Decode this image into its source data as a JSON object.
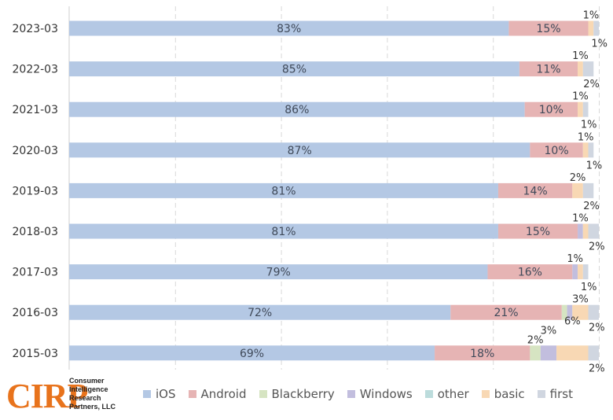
{
  "chart_data": {
    "type": "bar",
    "orientation": "horizontal",
    "stacked": true,
    "normalized": true,
    "categories": [
      "2023-03",
      "2022-03",
      "2021-03",
      "2020-03",
      "2019-03",
      "2018-03",
      "2017-03",
      "2016-03",
      "2015-03"
    ],
    "series": [
      {
        "name": "iOS",
        "color": "#b4c8e4",
        "values": [
          83,
          85,
          86,
          87,
          81,
          81,
          79,
          72,
          69
        ],
        "labels": [
          "83%",
          "85%",
          "86%",
          "87%",
          "81%",
          "81%",
          "79%",
          "72%",
          "69%"
        ]
      },
      {
        "name": "Android",
        "color": "#e6b4b4",
        "values": [
          15,
          11,
          10,
          10,
          14,
          15,
          16,
          21,
          18
        ],
        "labels": [
          "15%",
          "11%",
          "10%",
          "10%",
          "14%",
          "15%",
          "16%",
          "21%",
          "18%"
        ]
      },
      {
        "name": "Blackberry",
        "color": "#d6e4c2",
        "values": [
          0,
          0,
          0,
          0,
          0,
          0,
          0,
          1,
          2
        ],
        "labels": [
          "",
          "",
          "",
          "",
          "",
          "",
          "",
          "",
          "2%"
        ]
      },
      {
        "name": "Windows",
        "color": "#c2bede",
        "values": [
          0,
          0,
          0,
          0,
          0,
          1,
          1,
          1,
          3
        ],
        "labels": [
          "",
          "",
          "",
          "",
          "",
          "1%",
          "1%",
          "",
          "3%"
        ]
      },
      {
        "name": "other",
        "color": "#bcdcdc",
        "values": [
          0,
          0,
          0,
          0,
          0,
          0,
          0,
          0,
          0
        ],
        "labels": [
          "",
          "",
          "",
          "",
          "",
          "",
          "",
          "",
          ""
        ]
      },
      {
        "name": "basic",
        "color": "#f8d8b4",
        "values": [
          1,
          1,
          1,
          1,
          2,
          1,
          1,
          3,
          6
        ],
        "labels": [
          "1%",
          "1%",
          "1%",
          "1%",
          "2%",
          "",
          "",
          "3%",
          "6%"
        ]
      },
      {
        "name": "first",
        "color": "#d0d6e0",
        "values": [
          1,
          2,
          1,
          1,
          2,
          2,
          1,
          2,
          2
        ],
        "labels": [
          "1%",
          "2%",
          "1%",
          "1%",
          "2%",
          "2%",
          "1%",
          "2%",
          "2%"
        ]
      }
    ],
    "xlim": [
      0,
      100
    ],
    "grid": true,
    "legend": "bottom"
  },
  "logo": {
    "mark": "CIRP",
    "name_lines": [
      "Consumer",
      "Intelligence",
      "Research",
      "Partners, LLC"
    ]
  }
}
